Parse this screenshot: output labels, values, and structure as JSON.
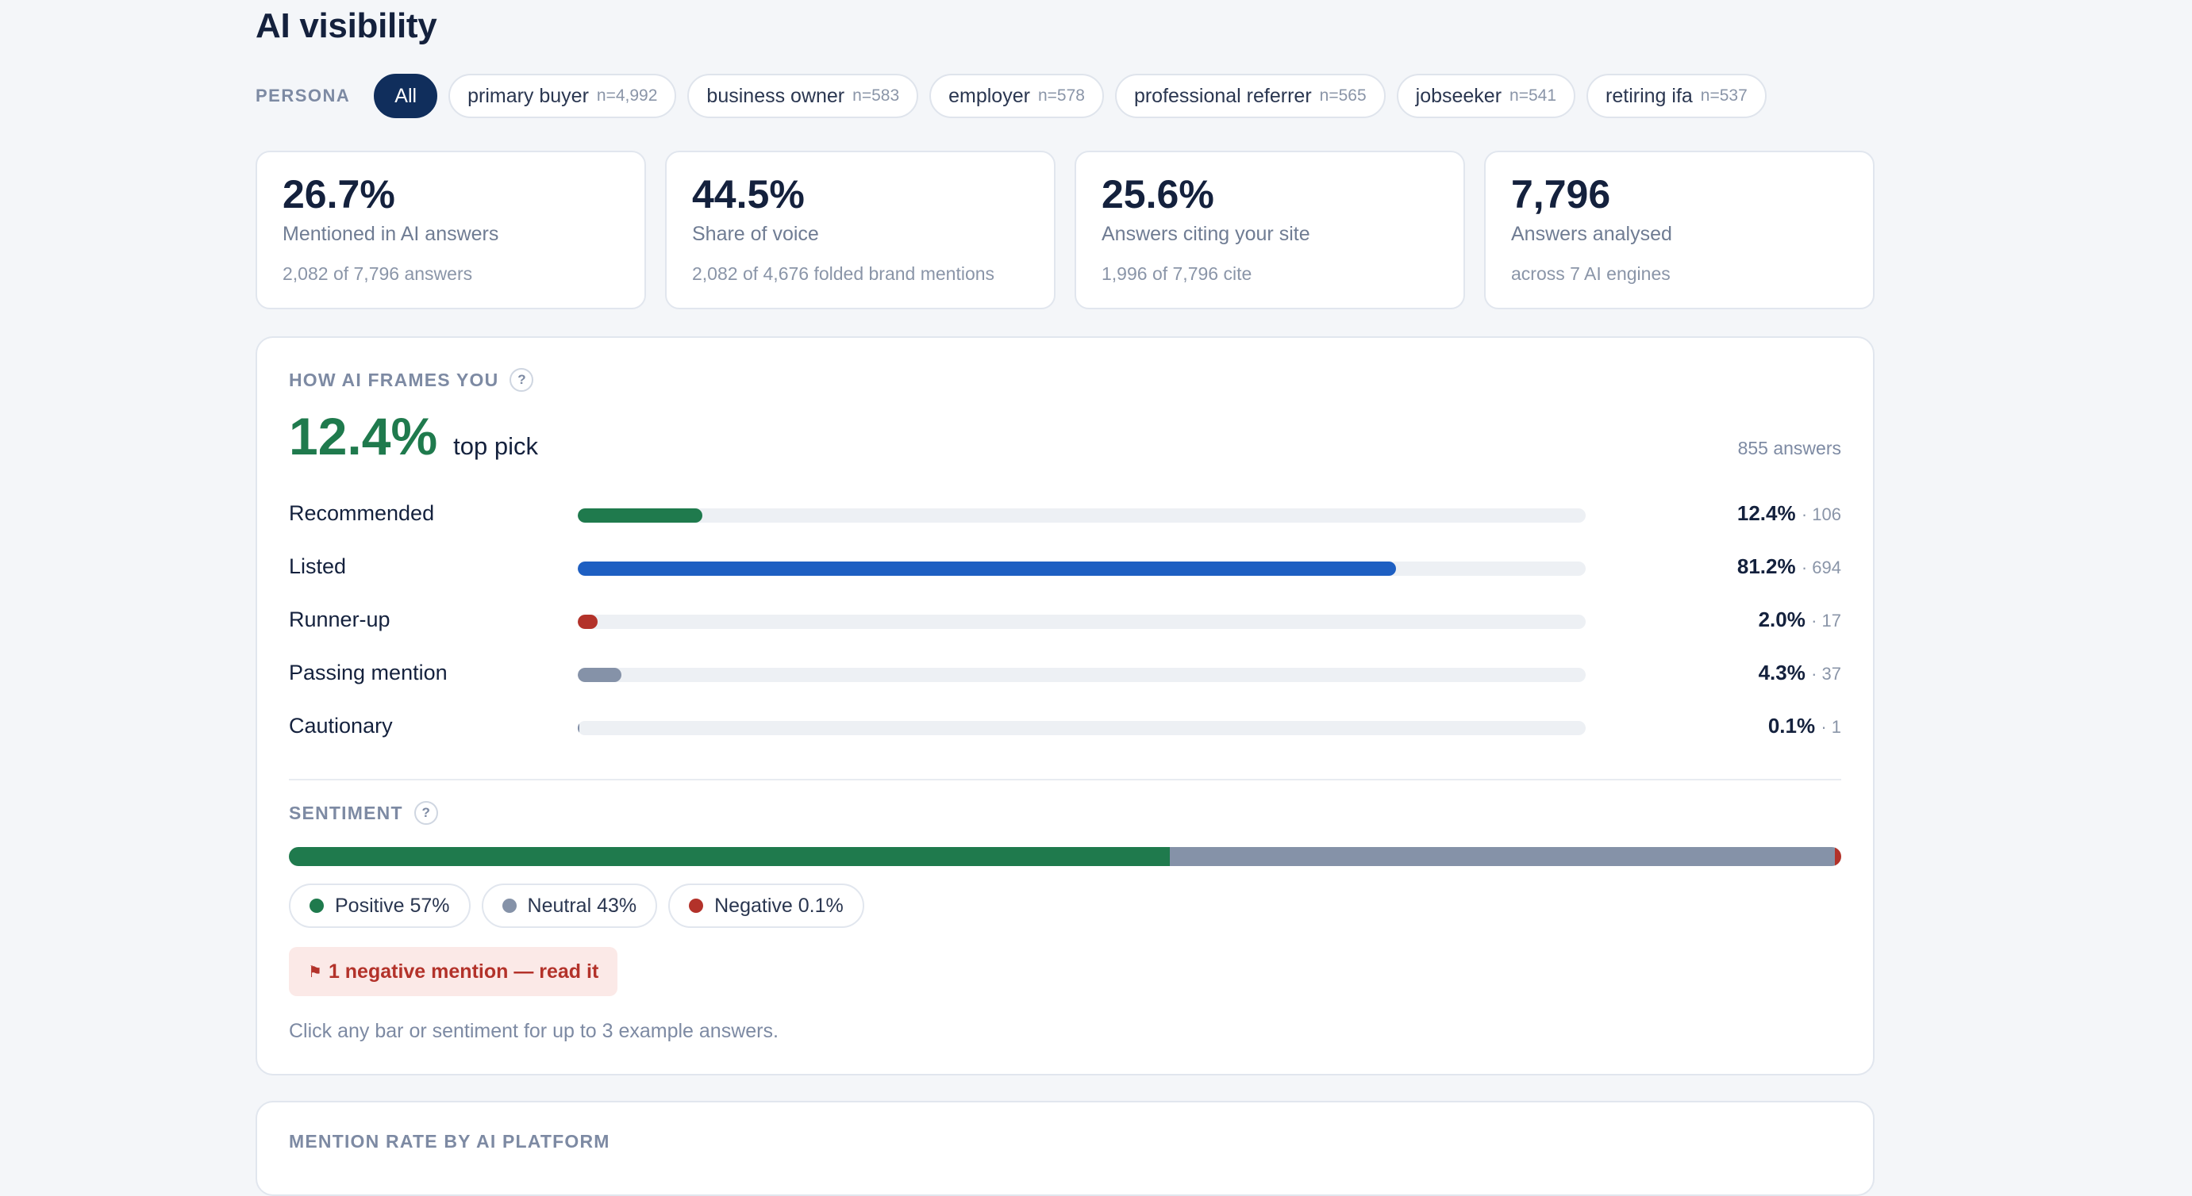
{
  "page": {
    "title": "AI visibility"
  },
  "persona": {
    "label": "PERSONA",
    "chips": [
      {
        "label": "All",
        "n": "",
        "active": true
      },
      {
        "label": "primary buyer",
        "n": "n=4,992"
      },
      {
        "label": "business owner",
        "n": "n=583"
      },
      {
        "label": "employer",
        "n": "n=578"
      },
      {
        "label": "professional referrer",
        "n": "n=565"
      },
      {
        "label": "jobseeker",
        "n": "n=541"
      },
      {
        "label": "retiring ifa",
        "n": "n=537"
      }
    ]
  },
  "stats": [
    {
      "value": "26.7%",
      "label": "Mentioned in AI answers",
      "sub": "2,082 of 7,796 answers"
    },
    {
      "value": "44.5%",
      "label": "Share of voice",
      "sub": "2,082 of 4,676 folded brand mentions"
    },
    {
      "value": "25.6%",
      "label": "Answers citing your site",
      "sub": "1,996 of 7,796 cite"
    },
    {
      "value": "7,796",
      "label": "Answers analysed",
      "sub": "across 7 AI engines"
    }
  ],
  "frames": {
    "section_label": "HOW AI FRAMES YOU",
    "help": "?",
    "headline_value": "12.4%",
    "headline_label": "top pick",
    "answers": "855 answers",
    "bars": [
      {
        "label": "Recommended",
        "pct": "12.4%",
        "count": "· 106",
        "fraction": 0.124,
        "color": "#1f7a4d"
      },
      {
        "label": "Listed",
        "pct": "81.2%",
        "count": "· 694",
        "fraction": 0.812,
        "color": "#1e5fc2"
      },
      {
        "label": "Runner-up",
        "pct": "2.0%",
        "count": "· 17",
        "fraction": 0.02,
        "color": "#b3322a"
      },
      {
        "label": "Passing mention",
        "pct": "4.3%",
        "count": "· 37",
        "fraction": 0.043,
        "color": "#8592a8"
      },
      {
        "label": "Cautionary",
        "pct": "0.1%",
        "count": "· 1",
        "fraction": 0.001,
        "color": "#7d8aa3"
      }
    ]
  },
  "sentiment": {
    "section_label": "SENTIMENT",
    "help": "?",
    "segments": [
      {
        "label": "Positive 57%",
        "fraction": 0.57,
        "color": "#1f7a4d"
      },
      {
        "label": "Neutral 43%",
        "fraction": 0.43,
        "color": "#8592a8"
      },
      {
        "label": "Negative 0.1%",
        "fraction": 0.001,
        "color": "#b3322a"
      }
    ],
    "negative_alert": "1 negative mention — read it",
    "flag_icon": "⚑",
    "hint": "Click any bar or sentiment for up to 3 example answers."
  },
  "platform": {
    "section_label": "MENTION RATE BY AI PLATFORM"
  }
}
